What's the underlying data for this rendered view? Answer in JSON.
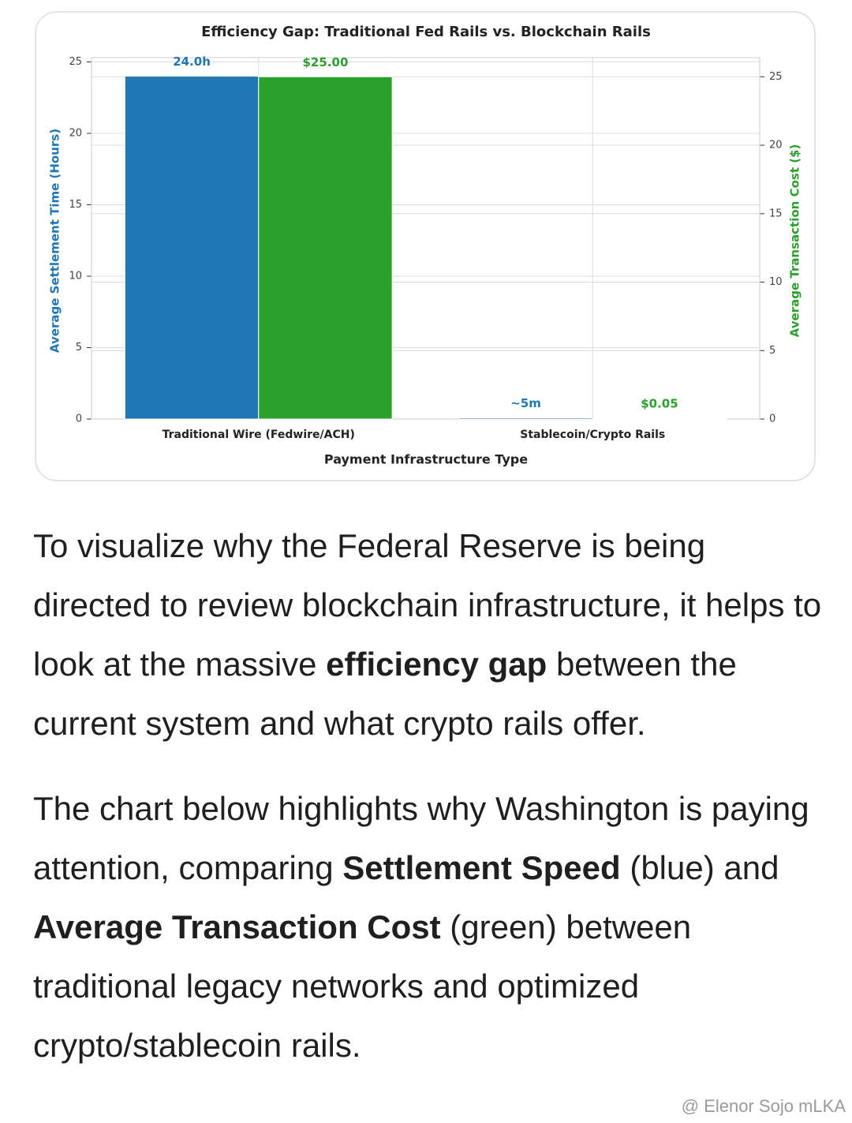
{
  "chart_data": {
    "type": "bar",
    "title": "Efficiency Gap: Traditional Fed Rails vs. Blockchain Rails",
    "xlabel": "Payment Infrastructure Type",
    "ylabel": "Average Settlement Time (Hours)",
    "y2label": "Average Transaction Cost ($)",
    "categories": [
      "Traditional Wire (Fedwire/ACH)",
      "Stablecoin/Crypto Rails"
    ],
    "series": [
      {
        "color": "#1f77b4",
        "values": [
          24,
          0.083
        ],
        "value_labels": [
          "24.0h",
          "~5m"
        ]
      },
      {
        "color": "#2ca02c",
        "values": [
          25,
          0.05
        ],
        "value_labels": [
          "$25.00",
          "$0.05"
        ],
        "axis": "y2"
      }
    ],
    "ylim": [
      0,
      25.3
    ],
    "yticks": [
      0,
      5,
      10,
      15,
      20,
      25
    ],
    "y2lim": [
      0,
      26.4
    ],
    "y2ticks": [
      0,
      5,
      10,
      15,
      20,
      25
    ],
    "grid": true
  },
  "paragraphs": [
    [
      {
        "text": "To visualize why the Federal Reserve is being directed to review blockchain infrastructure, it helps to look at the massive "
      },
      {
        "text": "efficiency gap",
        "bold": true
      },
      {
        "text": " between the current system and what crypto rails offer."
      }
    ],
    [
      {
        "text": "The chart below highlights why Washington is paying attention, comparing "
      },
      {
        "text": "Settlement Speed",
        "bold": true
      },
      {
        "text": " (blue) and "
      },
      {
        "text": "Average Transaction Cost",
        "bold": true
      },
      {
        "text": " (green) between traditional legacy networks and optimized crypto/stablecoin rails."
      }
    ]
  ],
  "watermark": "@ Elenor Sojo mLKA"
}
